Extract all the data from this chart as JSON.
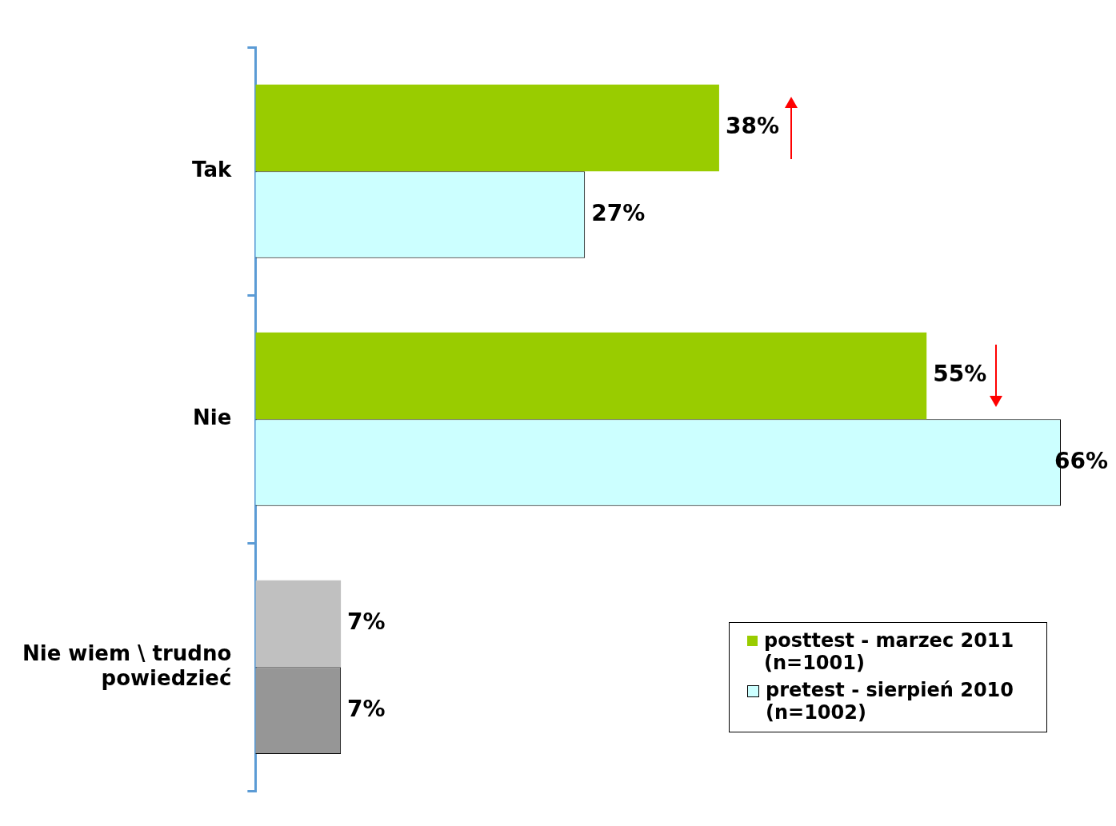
{
  "chart_data": {
    "type": "bar",
    "orientation": "horizontal",
    "categories": [
      "Tak",
      "Nie",
      "Nie wiem \\ trudno powiedzieć"
    ],
    "series": [
      {
        "name": "posttest - marzec 2011 (n=1001)",
        "color": "#99cc00",
        "colors": [
          "#99cc00",
          "#99cc00",
          "#c0c0c0"
        ],
        "values": [
          38,
          55,
          7
        ],
        "value_labels": [
          "38%",
          "55%",
          "7%"
        ]
      },
      {
        "name": "pretest - sierpień 2010 (n=1002)",
        "color": "#ccffff",
        "colors": [
          "#ccffff",
          "#ccffff",
          "#969696"
        ],
        "values": [
          27,
          66,
          7
        ],
        "value_labels": [
          "27%",
          "66%",
          "7%"
        ]
      }
    ],
    "legend": "bottom right",
    "grid": false
  }
}
